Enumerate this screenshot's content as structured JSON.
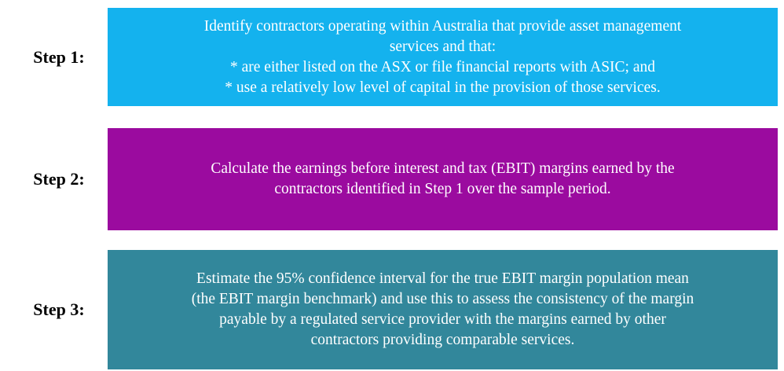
{
  "steps": [
    {
      "label": "Step 1:",
      "lines": [
        "Identify contractors operating within Australia that provide asset management",
        "services and that:",
        "* are either listed on the ASX or file financial reports with ASIC; and",
        "* use a relatively low level of capital in the provision of those services."
      ]
    },
    {
      "label": "Step 2:",
      "lines": [
        "Calculate the earnings before interest and tax (EBIT) margins earned by the",
        "contractors identified in Step 1 over the sample period."
      ]
    },
    {
      "label": "Step 3:",
      "lines": [
        "Estimate the 95% confidence interval for the true EBIT margin population mean",
        "(the EBIT margin benchmark) and use this to assess the consistency of the margin",
        "payable by a regulated service provider with the margins earned by other",
        "contractors providing comparable services."
      ]
    }
  ]
}
